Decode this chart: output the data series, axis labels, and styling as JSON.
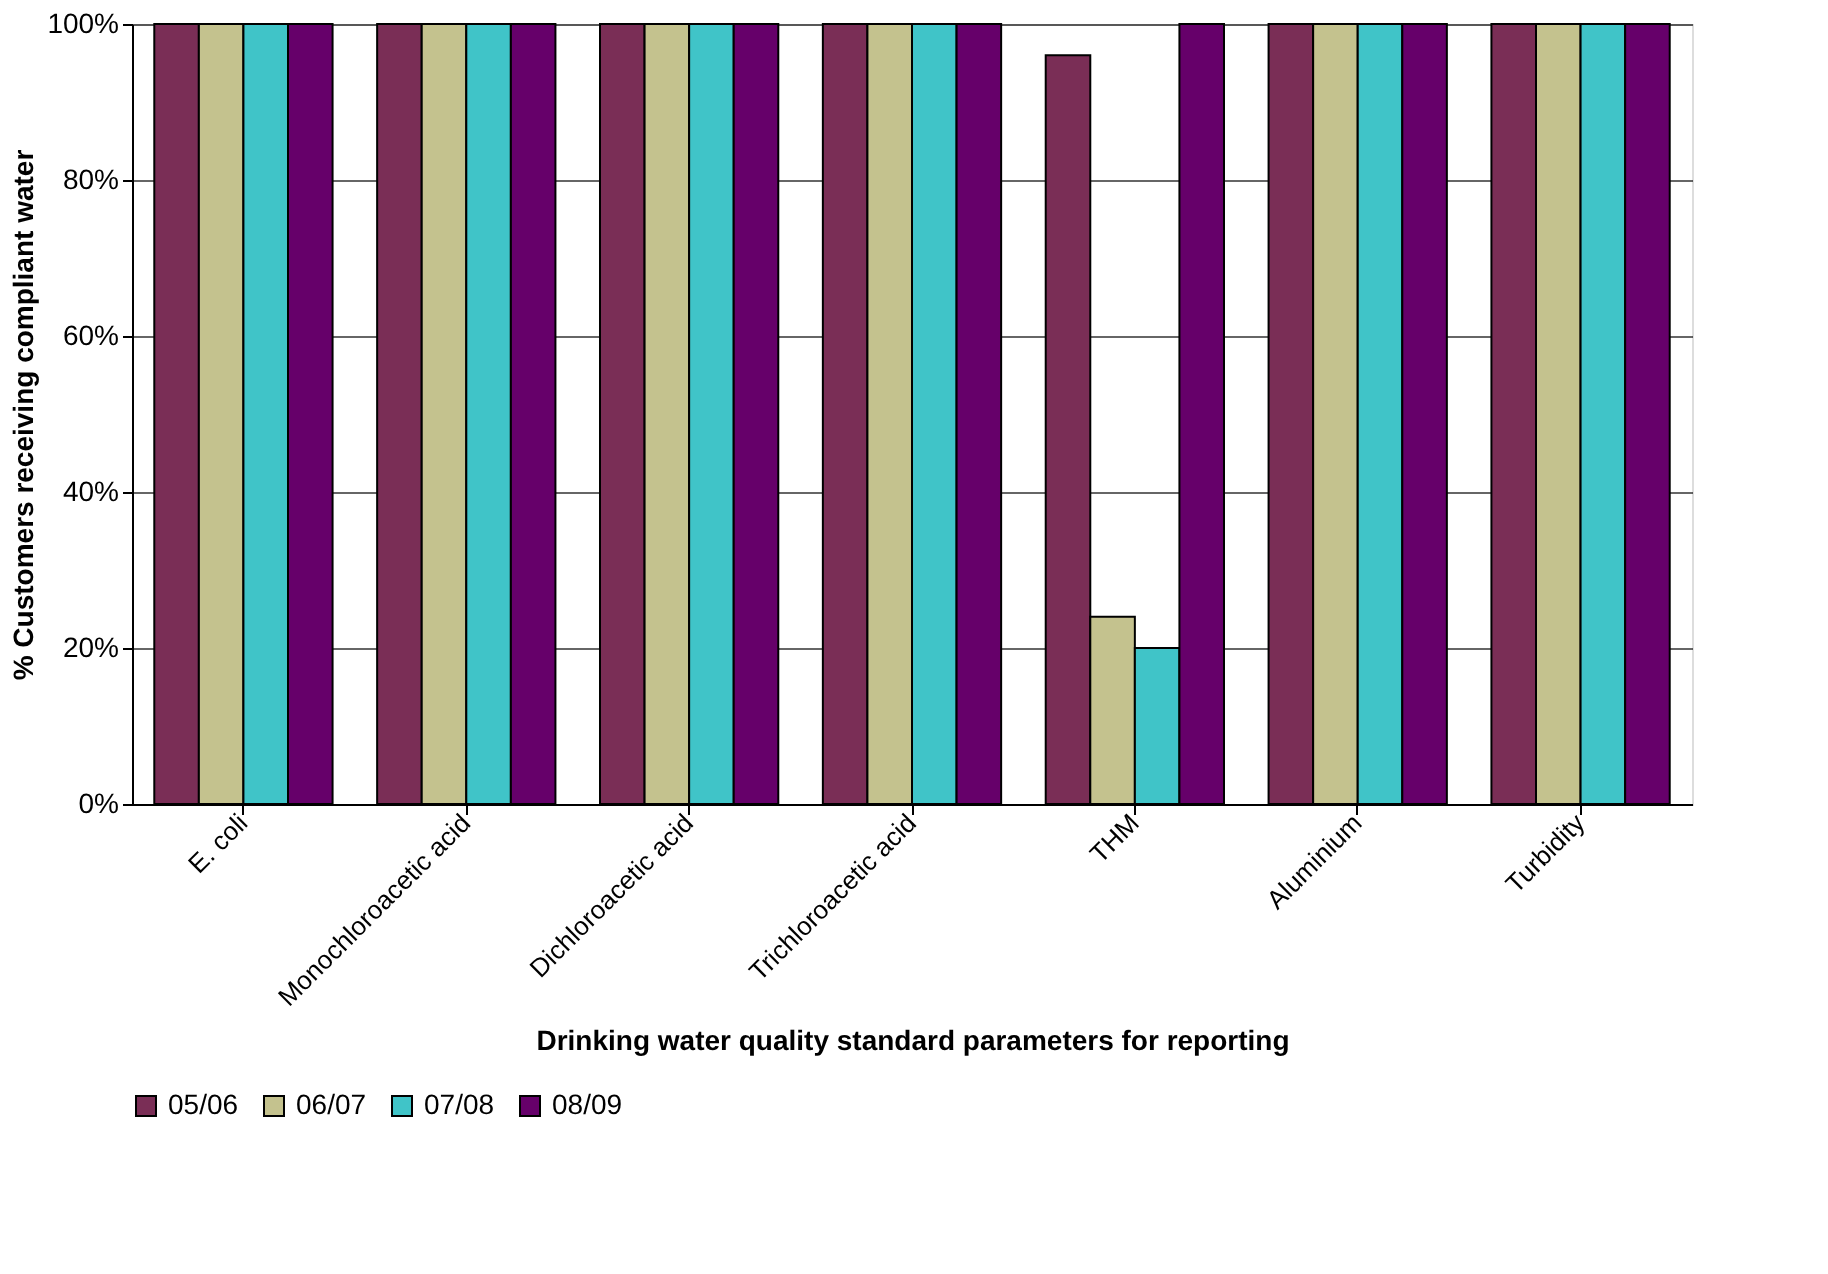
{
  "chart_data": {
    "type": "bar",
    "xlabel": "Drinking water quality standard parameters for reporting",
    "ylabel": "% Customers receiving compliant water",
    "categories": [
      "E. coli",
      "Monochloroacetic acid",
      "Dichloroacetic acid",
      "Trichloroacetic acid",
      "THM",
      "Aluminium",
      "Turbidity"
    ],
    "series": [
      {
        "name": "05/06",
        "color": "#7a2e56",
        "values": [
          100,
          100,
          100,
          100,
          96,
          100,
          100
        ]
      },
      {
        "name": "06/07",
        "color": "#c4c28e",
        "values": [
          100,
          100,
          100,
          100,
          24,
          100,
          100
        ]
      },
      {
        "name": "07/08",
        "color": "#40c4c8",
        "values": [
          100,
          100,
          100,
          100,
          20,
          100,
          100
        ]
      },
      {
        "name": "08/09",
        "color": "#66006a",
        "values": [
          100,
          100,
          100,
          100,
          100,
          100,
          100
        ]
      }
    ],
    "ylim": [
      0,
      100
    ],
    "yticks": [
      {
        "value": 0,
        "label": "0%"
      },
      {
        "value": 20,
        "label": "20%"
      },
      {
        "value": 40,
        "label": "40%"
      },
      {
        "value": 60,
        "label": "60%"
      },
      {
        "value": 80,
        "label": "80%"
      },
      {
        "value": 100,
        "label": "100%"
      }
    ],
    "grid": "y",
    "legend": "bottom"
  }
}
